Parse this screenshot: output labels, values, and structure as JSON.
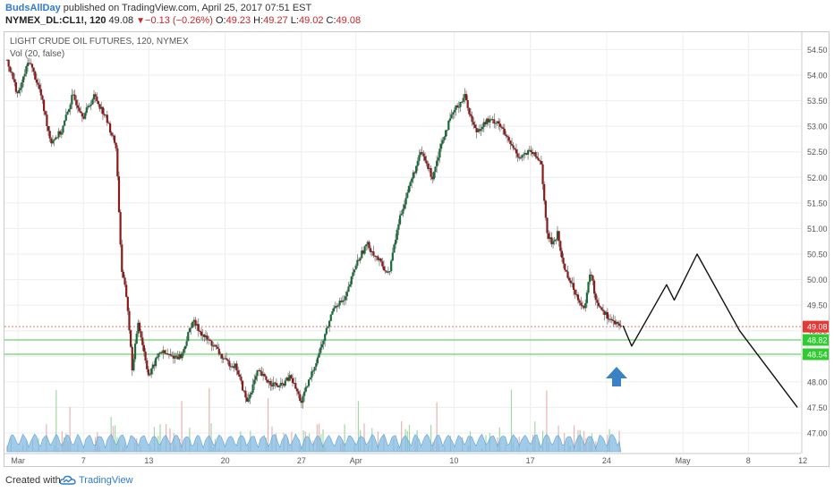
{
  "header": {
    "author": "BudsAllDay",
    "published_text": " published on TradingView.com, April 25, 2017 07:51 EST",
    "symbol": "NYMEX_DL:CL1!, 120",
    "last": "49.08",
    "change": "−0.13 (−0.26%)",
    "open_label": "O:",
    "open": "49.23",
    "high_label": "H:",
    "high": "49.27",
    "low_label": "L:",
    "low": "49.02",
    "close_label": "C:",
    "close": "49.08"
  },
  "chart_data": {
    "type": "candlestick",
    "title": "LIGHT CRUDE OIL FUTURES, 120, NYMEX",
    "indicator_label": "Vol (20, false)",
    "ylim": [
      46.85,
      54.75
    ],
    "y_ticks": [
      47.0,
      47.5,
      48.0,
      48.5,
      49.0,
      49.5,
      50.0,
      50.5,
      51.0,
      51.5,
      52.0,
      52.5,
      53.0,
      53.5,
      54.0,
      54.5
    ],
    "y_tick_labels": [
      "47.00",
      "47.50",
      "48.00",
      "48.50",
      "49.00",
      "49.50",
      "50.00",
      "50.50",
      "51.00",
      "51.50",
      "52.00",
      "52.50",
      "53.00",
      "53.50",
      "54.00",
      "54.50"
    ],
    "x_axis": {
      "range_days": [
        0,
        72
      ],
      "ticks": [
        {
          "day": 1,
          "label": "Mar"
        },
        {
          "day": 7,
          "label": "7"
        },
        {
          "day": 13,
          "label": "13"
        },
        {
          "day": 20,
          "label": "20"
        },
        {
          "day": 27,
          "label": "27"
        },
        {
          "day": 32,
          "label": "Apr"
        },
        {
          "day": 41,
          "label": "10"
        },
        {
          "day": 48,
          "label": "17"
        },
        {
          "day": 55,
          "label": "24"
        },
        {
          "day": 62,
          "label": "May"
        },
        {
          "day": 68,
          "label": "8"
        },
        {
          "day": 73,
          "label": "12"
        }
      ]
    },
    "price_path": [
      [
        0,
        54.3
      ],
      [
        1,
        53.6
      ],
      [
        2,
        54.3
      ],
      [
        3,
        53.7
      ],
      [
        4,
        52.7
      ],
      [
        5,
        52.9
      ],
      [
        6,
        53.6
      ],
      [
        7,
        53.2
      ],
      [
        8,
        53.6
      ],
      [
        9,
        53.2
      ],
      [
        10,
        52.6
      ],
      [
        10.5,
        50.2
      ],
      [
        11,
        49.6
      ],
      [
        11.5,
        48.2
      ],
      [
        12,
        49.2
      ],
      [
        13,
        48.1
      ],
      [
        14,
        48.6
      ],
      [
        15,
        48.5
      ],
      [
        16,
        48.5
      ],
      [
        17,
        49.2
      ],
      [
        18,
        48.9
      ],
      [
        19,
        48.7
      ],
      [
        20,
        48.4
      ],
      [
        21,
        48.3
      ],
      [
        22,
        47.6
      ],
      [
        23,
        48.2
      ],
      [
        24,
        48.0
      ],
      [
        25,
        47.9
      ],
      [
        26,
        48.1
      ],
      [
        27,
        47.6
      ],
      [
        28,
        48.2
      ],
      [
        29,
        48.8
      ],
      [
        30,
        49.5
      ],
      [
        31,
        49.6
      ],
      [
        32,
        50.3
      ],
      [
        33,
        50.7
      ],
      [
        34,
        50.4
      ],
      [
        35,
        50.1
      ],
      [
        36,
        51.2
      ],
      [
        37,
        51.9
      ],
      [
        38,
        52.5
      ],
      [
        39,
        52.0
      ],
      [
        40,
        52.8
      ],
      [
        41,
        53.3
      ],
      [
        42,
        53.6
      ],
      [
        42.5,
        53.2
      ],
      [
        43,
        52.9
      ],
      [
        44,
        53.1
      ],
      [
        45,
        53.1
      ],
      [
        46,
        52.7
      ],
      [
        47,
        52.4
      ],
      [
        48,
        52.5
      ],
      [
        49,
        52.3
      ],
      [
        49.5,
        50.9
      ],
      [
        50,
        50.7
      ],
      [
        50.5,
        50.9
      ],
      [
        51,
        50.3
      ],
      [
        52,
        49.8
      ],
      [
        53,
        49.4
      ],
      [
        53.5,
        50.2
      ],
      [
        54,
        49.6
      ],
      [
        55,
        49.3
      ],
      [
        56,
        49.1
      ],
      [
        56.3,
        49.08
      ]
    ],
    "volume_label": "Vol",
    "horizontal_lines": [
      {
        "price": 48.82,
        "color": "#44c444",
        "label": "48.82"
      },
      {
        "price": 48.54,
        "color": "#44c444",
        "label": "48.54"
      },
      {
        "price": 49.08,
        "color": "#e57373",
        "style": "dotted",
        "label": "49.08"
      }
    ],
    "projection": [
      [
        56.5,
        49.1
      ],
      [
        57.3,
        48.7
      ],
      [
        60.5,
        49.9
      ],
      [
        61.2,
        49.6
      ],
      [
        63.3,
        50.5
      ],
      [
        67.2,
        49.0
      ],
      [
        72.5,
        47.5
      ]
    ],
    "colors": {
      "up": "#1b6a3a",
      "down": "#8b1a1a",
      "volume_up": "#a5d6a7",
      "volume_down": "#e8b4b4",
      "volume_area": "#81b9e0",
      "arrow": "#3b82c4",
      "projection": "#111111",
      "last_price_tag": "#e53935",
      "level_tag": "#2ecc2e",
      "accent": "#2e7bcf"
    },
    "grid": true,
    "annotations": [
      "blue up arrow below 48.54 support",
      "hand-drawn projection line"
    ]
  },
  "footer": {
    "created_with": "Created with",
    "brand": "TradingView",
    "logo_icon": "tradingview-cloud-icon"
  }
}
